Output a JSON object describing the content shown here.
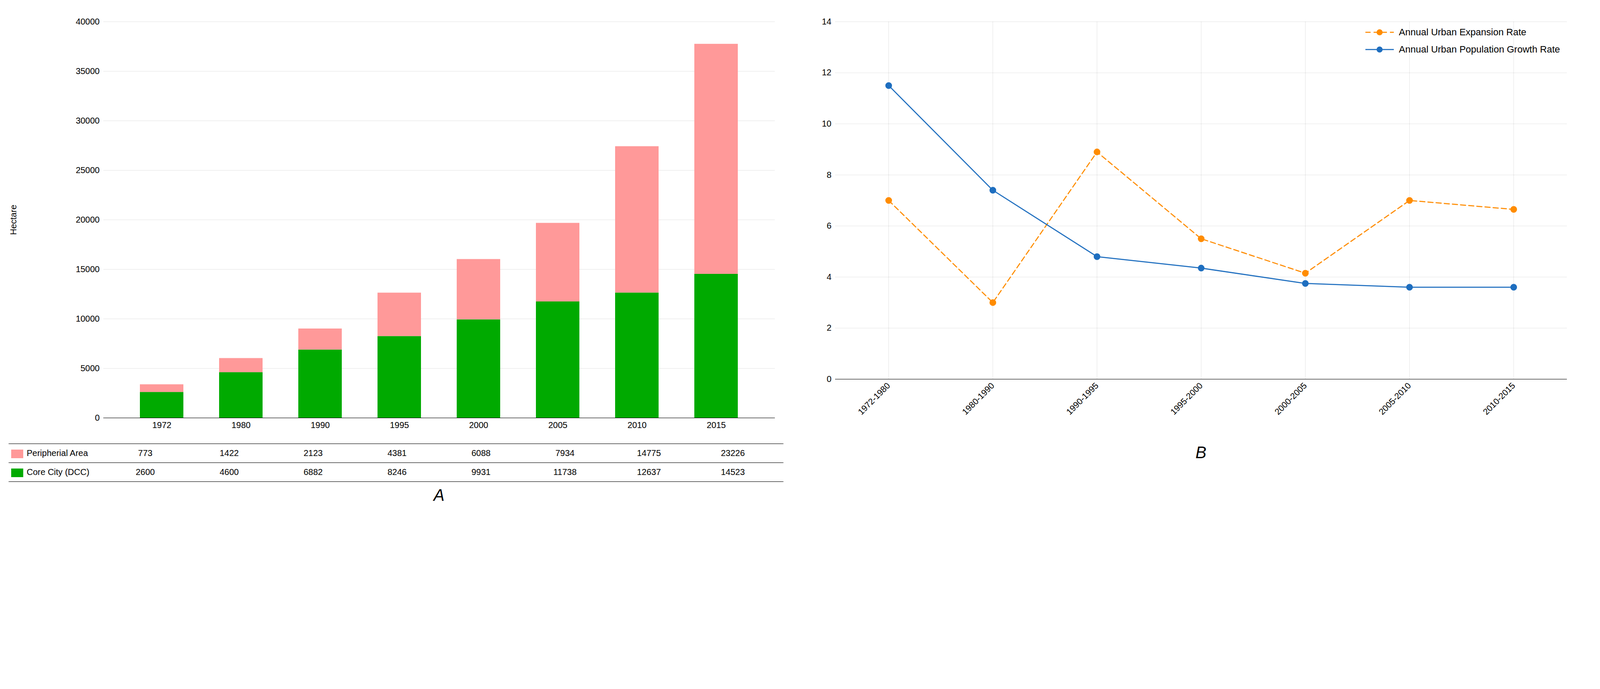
{
  "chart_data": [
    {
      "type": "bar",
      "title": "A",
      "stacked": true,
      "categories": [
        "1972",
        "1980",
        "1990",
        "1995",
        "2000",
        "2005",
        "2010",
        "2015"
      ],
      "series": [
        {
          "name": "Core City (DCC)",
          "color": "#00AA00",
          "values": [
            2600,
            4600,
            6882,
            8246,
            9931,
            11738,
            12637,
            14523
          ]
        },
        {
          "name": "Peripherial Area",
          "color": "#FF9999",
          "values": [
            773,
            1422,
            2123,
            4381,
            6088,
            7934,
            14775,
            23226
          ]
        }
      ],
      "ylabel": "Hectare",
      "ylim": [
        0,
        40000
      ],
      "yticks": [
        0,
        5000,
        10000,
        15000,
        20000,
        25000,
        30000,
        35000,
        40000
      ],
      "grid": true,
      "legend": "bottom"
    },
    {
      "type": "line",
      "title": "B",
      "categories": [
        "1972-1980",
        "1980-1990",
        "1990-1995",
        "1995-2000",
        "2000-2005",
        "2005-2010",
        "2010-2015"
      ],
      "series": [
        {
          "name": "Annual Urban Expansion Rate",
          "color": "#FF8C00",
          "marker": "circle",
          "line_style": "dashed",
          "values": [
            7.0,
            3.0,
            8.9,
            5.5,
            4.15,
            7.0,
            6.65
          ]
        },
        {
          "name": "Annual Urban Population Growth Rate",
          "color": "#1E6EBF",
          "marker": "circle",
          "line_style": "solid",
          "values": [
            11.5,
            7.4,
            4.8,
            4.35,
            3.75,
            3.6,
            3.6
          ]
        }
      ],
      "ylim": [
        0,
        14
      ],
      "yticks": [
        0,
        2,
        4,
        6,
        8,
        10,
        12,
        14
      ],
      "grid": true,
      "legend": "upper right"
    }
  ]
}
